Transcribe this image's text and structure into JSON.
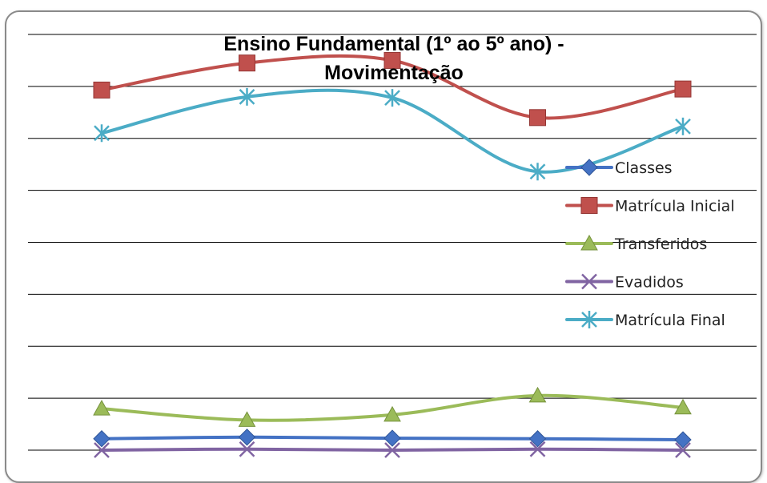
{
  "chart_data": {
    "type": "line",
    "title_lines": [
      "Ensino Fundamental  (1º ao 5º ano) -",
      "Movimentação"
    ],
    "xlabel": "",
    "ylabel": "",
    "x_count": 5,
    "grid": true,
    "legend_position": "right",
    "ylim": [
      0,
      8
    ],
    "series": [
      {
        "name": "Classes",
        "color": "#4472C4",
        "marker": "diamond",
        "values": [
          0.22,
          0.25,
          0.23,
          0.22,
          0.2
        ]
      },
      {
        "name": "Matrícula Inicial",
        "color": "#C0504D",
        "marker": "square",
        "values": [
          6.93,
          7.45,
          7.5,
          6.4,
          6.95
        ]
      },
      {
        "name": "Transferidos",
        "color": "#9BBB59",
        "marker": "triangle",
        "values": [
          0.8,
          0.58,
          0.68,
          1.05,
          0.82
        ]
      },
      {
        "name": "Evadidos",
        "color": "#8064A2",
        "marker": "x",
        "values": [
          0.0,
          0.02,
          0.0,
          0.02,
          0.0
        ]
      },
      {
        "name": "Matrícula Final",
        "color": "#4BACC6",
        "marker": "star",
        "values": [
          6.1,
          6.8,
          6.78,
          5.36,
          6.23
        ]
      }
    ]
  }
}
